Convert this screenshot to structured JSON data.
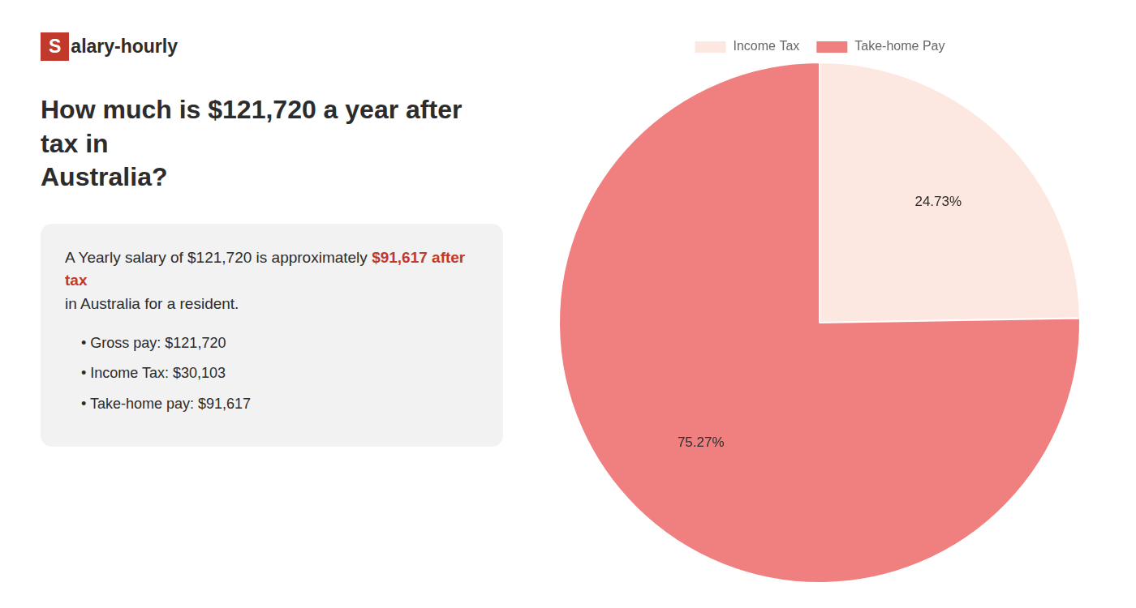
{
  "chart_data": {
    "type": "pie",
    "title": [
      "How much is $121,720 a year after tax in",
      "Australia?"
    ],
    "annotations": [
      {
        "text": "S",
        "color": "#c0392b"
      },
      {
        "text": "alary-hourly"
      },
      {
        "text": "A Yearly salary of $121,720 is approximately "
      },
      {
        "text": "$91,617 after tax",
        "color": "#c0392b"
      },
      {
        "text": "in Australia for a resident."
      },
      {
        "text": "•  Gross pay: $121,720"
      },
      {
        "text": "•  Income Tax: $30,103"
      },
      {
        "text": "•  Take-home pay: $91,617"
      }
    ],
    "categories": [
      "Income Tax",
      "Take-home Pay"
    ],
    "values": [
      24.73,
      75.27
    ],
    "value_labels": [
      "24.73%",
      "75.27%"
    ],
    "colors": [
      "#fce8e0",
      "#f08080"
    ],
    "data_labels": true,
    "legend": "top"
  }
}
